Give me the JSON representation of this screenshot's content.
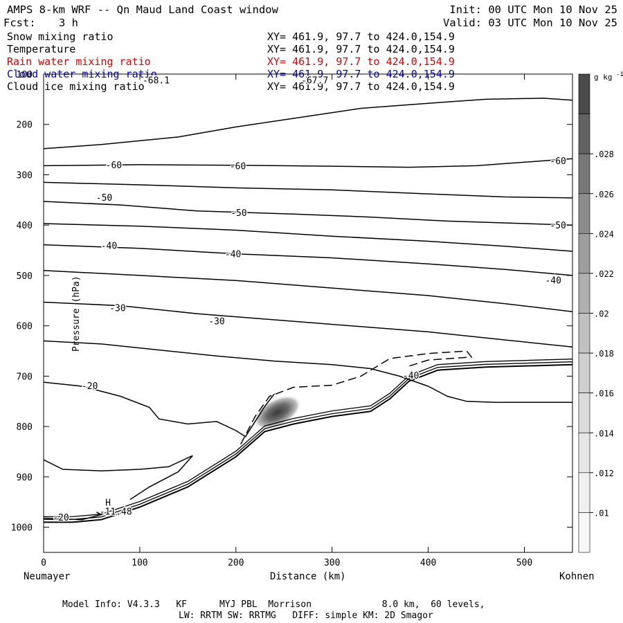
{
  "header": {
    "title": "AMPS 8-km WRF -- Qn Maud Land Coast window",
    "fcst_label": "Fcst:",
    "fcst_value": "3 h",
    "init": "Init: 00 UTC Mon 10 Nov 25",
    "valid": "Valid: 03 UTC Mon 10 Nov 25"
  },
  "fields": [
    {
      "name": "Snow mixing ratio",
      "xy": "XY= 461.9, 97.7 to 424.0,154.9",
      "color": "#000000"
    },
    {
      "name": "Temperature",
      "xy": "XY= 461.9, 97.7 to 424.0,154.9",
      "color": "#000000"
    },
    {
      "name": "Rain water mixing ratio",
      "xy": "XY= 461.9, 97.7 to 424.0,154.9",
      "color": "#e00000"
    },
    {
      "name": "Cloud water mixing ratio",
      "xy": "XY= 461.9, 97.7 to 424.0,154.9",
      "color": "#0000cc"
    },
    {
      "name": "Cloud ice mixing ratio",
      "xy": "XY= 461.9, 97.7 to 424.0,154.9",
      "color": "#000000"
    }
  ],
  "footer": {
    "line1": "Model Info: V4.3.3   KF      MYJ PBL  Morrison             8.0 km,  60 levels,",
    "line2": "LW: RRTM SW: RRTMG   DIFF: simple KM: 2D Smagor"
  },
  "chart_data": {
    "type": "contour-cross-section",
    "xlabel": "Distance (km)",
    "ylabel": "Pressure (hPa)",
    "xlim": [
      0,
      550
    ],
    "ylim": [
      1050,
      100
    ],
    "x_ticks": [
      0,
      100,
      200,
      300,
      400,
      500
    ],
    "y_ticks": [
      100,
      200,
      300,
      400,
      500,
      600,
      700,
      800,
      900,
      1000
    ],
    "y_tick_labels": [
      "100",
      "200",
      "300",
      "400",
      "500",
      "600",
      "700",
      "800",
      "900",
      "1000"
    ],
    "left_endpoint": "Neumayer",
    "right_endpoint": "Kohnen",
    "colorbar": {
      "unit": "g kg",
      "unit_exp": "-1",
      "ticks": [
        ".01",
        ".012",
        ".014",
        ".016",
        ".018",
        ".02",
        ".022",
        ".024",
        ".026",
        ".028"
      ],
      "shades": [
        "#f7f7f7",
        "#f0f0f0",
        "#e6e6e6",
        "#dbdbdb",
        "#cfcfcf",
        "#c0c0c0",
        "#b0b0b0",
        "#9e9e9e",
        "#8c8c8c",
        "#787878",
        "#626262",
        "#4a4a4a"
      ]
    },
    "contour_labels": [
      {
        "text": "-68.1",
        "x": 117,
        "p": 112
      },
      {
        "text": "-67.7",
        "x": 282,
        "p": 112
      },
      {
        "text": "-60",
        "x": 73,
        "p": 280
      },
      {
        "text": "-60",
        "x": 202,
        "p": 282
      },
      {
        "text": "-60",
        "x": 535,
        "p": 272
      },
      {
        "text": "-50",
        "x": 63,
        "p": 345
      },
      {
        "text": "-50",
        "x": 203,
        "p": 375
      },
      {
        "text": "-50",
        "x": 535,
        "p": 400
      },
      {
        "text": "-40",
        "x": 68,
        "p": 440
      },
      {
        "text": "-40",
        "x": 197,
        "p": 457
      },
      {
        "text": "-40",
        "x": 530,
        "p": 509
      },
      {
        "text": "-30",
        "x": 77,
        "p": 564
      },
      {
        "text": "-30",
        "x": 180,
        "p": 590
      },
      {
        "text": "-40",
        "x": 382,
        "p": 698
      },
      {
        "text": "-20",
        "x": 48,
        "p": 719
      },
      {
        "text": "-20",
        "x": 18,
        "p": 980
      },
      {
        "text": "H",
        "x": 67,
        "p": 950
      },
      {
        "text": "-11.48",
        "x": 75,
        "p": 968
      }
    ],
    "temperature_contours": [
      {
        "level": -60,
        "points": [
          [
            0,
            248
          ],
          [
            60,
            240
          ],
          [
            140,
            225
          ],
          [
            200,
            205
          ],
          [
            260,
            188
          ],
          [
            330,
            168
          ],
          [
            400,
            158
          ],
          [
            460,
            150
          ],
          [
            520,
            148
          ],
          [
            550,
            152
          ]
        ]
      },
      {
        "level": -60,
        "points": [
          [
            0,
            282
          ],
          [
            100,
            280
          ],
          [
            200,
            281
          ],
          [
            300,
            283
          ],
          [
            380,
            285
          ],
          [
            450,
            282
          ],
          [
            550,
            268
          ]
        ]
      },
      {
        "level": -50,
        "points": [
          [
            0,
            315
          ],
          [
            100,
            320
          ],
          [
            200,
            326
          ],
          [
            300,
            330
          ],
          [
            400,
            338
          ],
          [
            480,
            344
          ],
          [
            550,
            346
          ]
        ]
      },
      {
        "level": -50,
        "points": [
          [
            0,
            353
          ],
          [
            80,
            360
          ],
          [
            160,
            372
          ],
          [
            260,
            378
          ],
          [
            340,
            384
          ],
          [
            420,
            392
          ],
          [
            550,
            400
          ]
        ]
      },
      {
        "level": -40,
        "points": [
          [
            0,
            397
          ],
          [
            100,
            402
          ],
          [
            200,
            410
          ],
          [
            300,
            422
          ],
          [
            400,
            432
          ],
          [
            480,
            442
          ],
          [
            550,
            452
          ]
        ]
      },
      {
        "level": -40,
        "points": [
          [
            0,
            439
          ],
          [
            100,
            446
          ],
          [
            200,
            457
          ],
          [
            300,
            465
          ],
          [
            400,
            477
          ],
          [
            480,
            488
          ],
          [
            550,
            500
          ]
        ]
      },
      {
        "level": -40,
        "points": [
          [
            0,
            490
          ],
          [
            100,
            500
          ],
          [
            200,
            510
          ],
          [
            300,
            525
          ],
          [
            400,
            540
          ],
          [
            480,
            556
          ],
          [
            550,
            572
          ]
        ]
      },
      {
        "level": -30,
        "points": [
          [
            0,
            553
          ],
          [
            80,
            560
          ],
          [
            160,
            576
          ],
          [
            240,
            588
          ],
          [
            320,
            600
          ],
          [
            400,
            612
          ],
          [
            480,
            628
          ],
          [
            550,
            642
          ]
        ]
      },
      {
        "level": -30,
        "points": [
          [
            0,
            630
          ],
          [
            60,
            636
          ],
          [
            120,
            648
          ],
          [
            180,
            660
          ],
          [
            240,
            670
          ],
          [
            300,
            677
          ],
          [
            340,
            685
          ],
          [
            370,
            700
          ],
          [
            400,
            720
          ],
          [
            420,
            740
          ],
          [
            440,
            750
          ],
          [
            470,
            752
          ],
          [
            550,
            752
          ]
        ]
      }
    ],
    "terrain_surface_p": [
      [
        0,
        990
      ],
      [
        30,
        990
      ],
      [
        60,
        985
      ],
      [
        100,
        960
      ],
      [
        150,
        920
      ],
      [
        200,
        860
      ],
      [
        230,
        810
      ],
      [
        260,
        795
      ],
      [
        300,
        780
      ],
      [
        340,
        770
      ],
      [
        360,
        745
      ],
      [
        380,
        710
      ],
      [
        410,
        688
      ],
      [
        460,
        682
      ],
      [
        550,
        677
      ]
    ]
  }
}
